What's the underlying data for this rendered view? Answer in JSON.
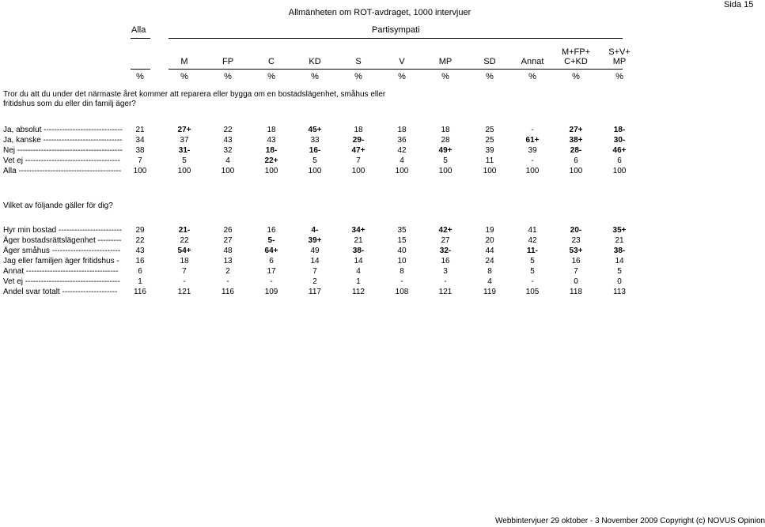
{
  "header": {
    "title": "Allmänheten om ROT-avdraget, 1000 intervjuer",
    "page": "Sida 15",
    "total_col_label": "Alla",
    "group_label": "Partisympati"
  },
  "columns": [
    {
      "line1": "",
      "line2": "M"
    },
    {
      "line1": "",
      "line2": "FP"
    },
    {
      "line1": "",
      "line2": "C"
    },
    {
      "line1": "",
      "line2": "KD"
    },
    {
      "line1": "",
      "line2": "S"
    },
    {
      "line1": "",
      "line2": "V"
    },
    {
      "line1": "",
      "line2": "MP"
    },
    {
      "line1": "",
      "line2": "SD"
    },
    {
      "line1": "",
      "line2": "Annat"
    },
    {
      "line1": "M+FP+",
      "line2": "C+KD"
    },
    {
      "line1": "S+V+",
      "line2": "MP"
    }
  ],
  "unit_symbol": "%",
  "section1": {
    "question": "Tror du att du under det närmaste året kommer att reparera eller bygga om en bostadslägenhet, småhus eller fritidshus som du eller din familj äger?",
    "rows": [
      {
        "label": "Ja, absolut ------------------------------",
        "values": [
          "21",
          "27+",
          "22",
          "18",
          "45+",
          "18",
          "18",
          "18",
          "25",
          "-",
          "27+",
          "18-"
        ]
      },
      {
        "label": "Ja, kanske ------------------------------",
        "values": [
          "34",
          "37",
          "43",
          "43",
          "33",
          "29-",
          "36",
          "28",
          "25",
          "61+",
          "38+",
          "30-"
        ]
      },
      {
        "label": "Nej ----------------------------------------",
        "values": [
          "38",
          "31-",
          "32",
          "18-",
          "16-",
          "47+",
          "42",
          "49+",
          "39",
          "39",
          "28-",
          "46+"
        ]
      },
      {
        "label": "Vet ej ------------------------------------",
        "values": [
          "7",
          "5",
          "4",
          "22+",
          "5",
          "7",
          "4",
          "5",
          "11",
          "-",
          "6",
          "6"
        ]
      },
      {
        "label": "Alla ---------------------------------------",
        "values": [
          "100",
          "100",
          "100",
          "100",
          "100",
          "100",
          "100",
          "100",
          "100",
          "100",
          "100",
          "100"
        ]
      }
    ]
  },
  "section2": {
    "question": "Vilket av följande gäller för dig?",
    "rows": [
      {
        "label": "Hyr min bostad ------------------------",
        "values": [
          "29",
          "21-",
          "26",
          "16",
          "4-",
          "34+",
          "35",
          "42+",
          "19",
          "41",
          "20-",
          "35+"
        ]
      },
      {
        "label": "Äger bostadsrättslägenhet ---------",
        "values": [
          "22",
          "22",
          "27",
          "5-",
          "39+",
          "21",
          "15",
          "27",
          "20",
          "42",
          "23",
          "21"
        ]
      },
      {
        "label": "Äger småhus --------------------------",
        "values": [
          "43",
          "54+",
          "48",
          "64+",
          "49",
          "38-",
          "40",
          "32-",
          "44",
          "11-",
          "53+",
          "38-"
        ]
      },
      {
        "label": "Jag eller familjen äger fritidshus -",
        "values": [
          "16",
          "18",
          "13",
          "6",
          "14",
          "14",
          "10",
          "16",
          "24",
          "5",
          "16",
          "14"
        ]
      },
      {
        "label": "Annat -----------------------------------",
        "values": [
          "6",
          "7",
          "2",
          "17",
          "7",
          "4",
          "8",
          "3",
          "8",
          "5",
          "7",
          "5"
        ]
      },
      {
        "label": "Vet ej ------------------------------------",
        "values": [
          "1",
          "-",
          "-",
          "-",
          "2",
          "1",
          "-",
          "-",
          "4",
          "-",
          "0",
          "0"
        ]
      },
      {
        "label": "Andel svar totalt ---------------------",
        "values": [
          "116",
          "121",
          "116",
          "109",
          "117",
          "112",
          "108",
          "121",
          "119",
          "105",
          "118",
          "113"
        ]
      }
    ]
  },
  "footer": "Webbintervjuer 29 oktober - 3 November 2009 Copyright (c) NOVUS Opinion"
}
